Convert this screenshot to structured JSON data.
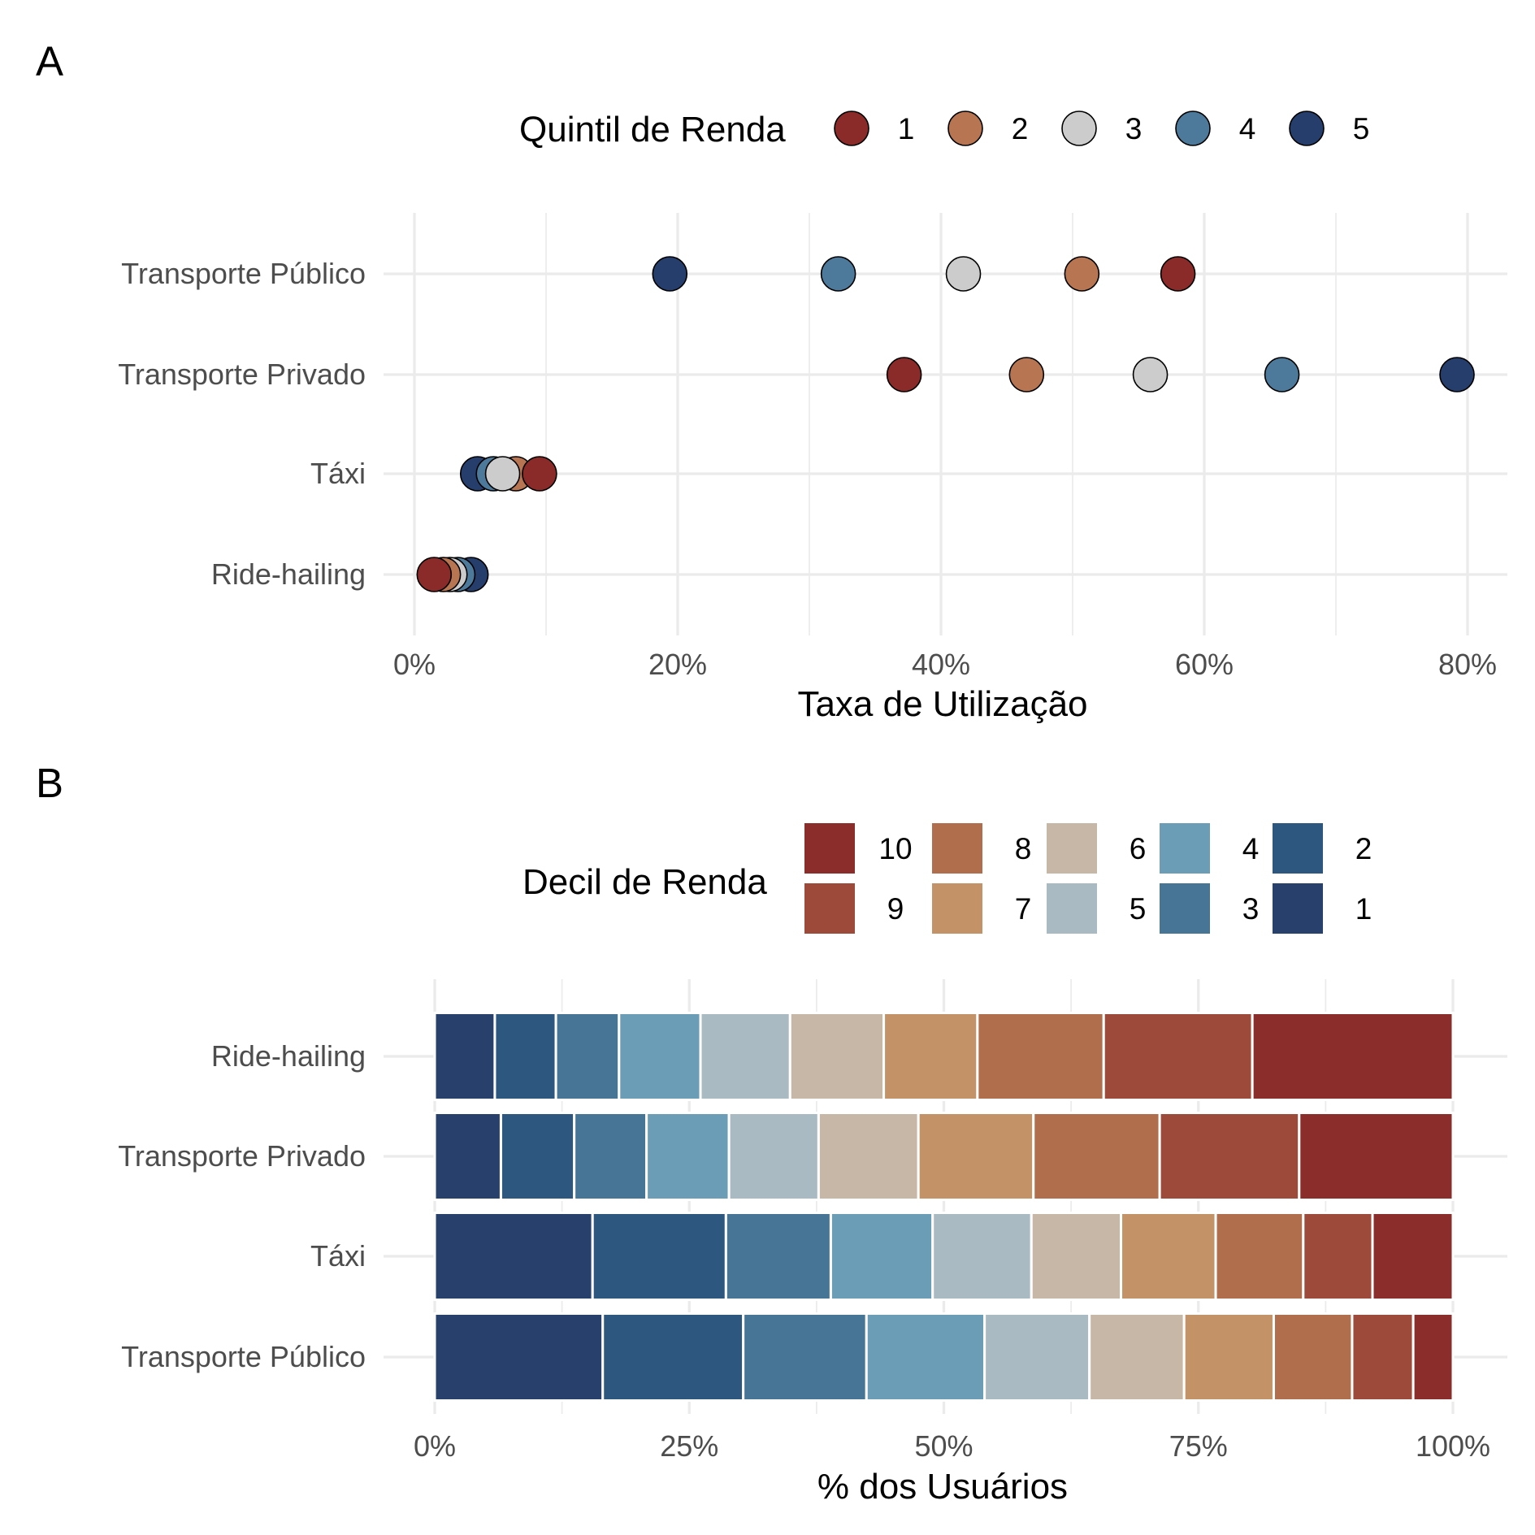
{
  "panels": {
    "a": "A",
    "b": "B"
  },
  "chart_data": [
    {
      "type": "scatter",
      "panel": "A",
      "legend": {
        "title": "Quintil de Renda",
        "placement": "top"
      },
      "categories": [
        "Transporte Público",
        "Transporte Privado",
        "Táxi",
        "Ride-hailing"
      ],
      "xlabel": "Taxa de Utilização",
      "xlim": [
        0,
        0.82
      ],
      "xticks": [
        "0%",
        "20%",
        "40%",
        "60%",
        "80%"
      ],
      "xtick_values": [
        0,
        0.2,
        0.4,
        0.6,
        0.8
      ],
      "grid": true,
      "series": [
        {
          "name": "1",
          "color": "#8a2b29",
          "values": [
            0.58,
            0.372,
            0.095,
            0.015
          ]
        },
        {
          "name": "2",
          "color": "#b87552",
          "values": [
            0.507,
            0.465,
            0.077,
            0.022
          ]
        },
        {
          "name": "3",
          "color": "#cccccc",
          "values": [
            0.417,
            0.559,
            0.067,
            0.027
          ]
        },
        {
          "name": "4",
          "color": "#4d7a9a",
          "values": [
            0.322,
            0.659,
            0.06,
            0.033
          ]
        },
        {
          "name": "5",
          "color": "#263e6b",
          "values": [
            0.194,
            0.792,
            0.048,
            0.043
          ]
        }
      ]
    },
    {
      "type": "bar",
      "stacked": true,
      "orientation": "horizontal",
      "panel": "B",
      "legend": {
        "title": "Decil de Renda",
        "placement": "top"
      },
      "categories": [
        "Ride-hailing",
        "Transporte Privado",
        "Táxi",
        "Transporte Público"
      ],
      "xlabel": "% dos Usuários",
      "xlim": [
        0,
        1
      ],
      "xticks": [
        "0%",
        "25%",
        "50%",
        "75%",
        "100%"
      ],
      "xtick_values": [
        0,
        0.25,
        0.5,
        0.75,
        1
      ],
      "grid": true,
      "series": [
        {
          "name": "1",
          "color": "#27416c",
          "values": [
            0.059,
            0.065,
            0.155,
            0.165
          ]
        },
        {
          "name": "2",
          "color": "#2e5780",
          "values": [
            0.06,
            0.072,
            0.131,
            0.138
          ]
        },
        {
          "name": "3",
          "color": "#467596",
          "values": [
            0.062,
            0.071,
            0.103,
            0.121
          ]
        },
        {
          "name": "4",
          "color": "#6c9db6",
          "values": [
            0.08,
            0.081,
            0.1,
            0.116
          ]
        },
        {
          "name": "5",
          "color": "#aabac3",
          "values": [
            0.088,
            0.088,
            0.097,
            0.103
          ]
        },
        {
          "name": "6",
          "color": "#c7b7a6",
          "values": [
            0.092,
            0.098,
            0.088,
            0.093
          ]
        },
        {
          "name": "7",
          "color": "#c39267",
          "values": [
            0.092,
            0.113,
            0.093,
            0.088
          ]
        },
        {
          "name": "8",
          "color": "#b06e4c",
          "values": [
            0.124,
            0.124,
            0.086,
            0.077
          ]
        },
        {
          "name": "9",
          "color": "#9d4a3b",
          "values": [
            0.146,
            0.137,
            0.068,
            0.06
          ]
        },
        {
          "name": "10",
          "color": "#8a2d2b",
          "values": [
            0.197,
            0.151,
            0.079,
            0.039
          ]
        }
      ]
    }
  ]
}
